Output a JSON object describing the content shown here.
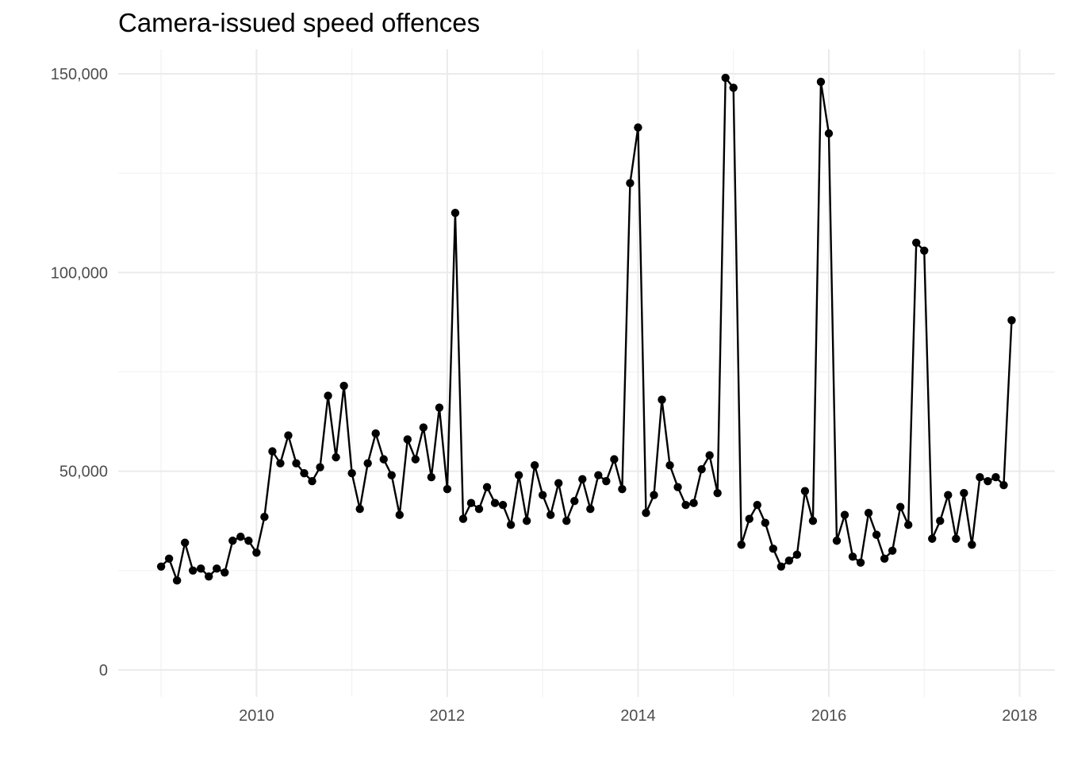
{
  "chart_data": {
    "type": "line",
    "title": "Camera-issued speed offences",
    "xlabel": "",
    "ylabel": "",
    "xlim": [
      2008.55,
      2018.37
    ],
    "ylim": [
      -6800,
      156200
    ],
    "x_ticks": [
      2010,
      2012,
      2014,
      2016,
      2018
    ],
    "x_tick_labels": [
      "2010",
      "2012",
      "2014",
      "2016",
      "2018"
    ],
    "y_ticks": [
      0,
      50000,
      100000,
      150000
    ],
    "y_tick_labels": [
      "0",
      "50,000",
      "100,000",
      "150,000"
    ],
    "grid": true,
    "legend": "none",
    "colors": {
      "line": "#000000",
      "point": "#000000",
      "grid": "#ebebeb",
      "tick_text": "#4d4d4d"
    },
    "x_start": "2009-01",
    "x_step": "month",
    "x_labels": [
      "2009-01",
      "2009-02",
      "2009-03",
      "2009-04",
      "2009-05",
      "2009-06",
      "2009-07",
      "2009-08",
      "2009-09",
      "2009-10",
      "2009-11",
      "2009-12",
      "2010-01",
      "2010-02",
      "2010-03",
      "2010-04",
      "2010-05",
      "2010-06",
      "2010-07",
      "2010-08",
      "2010-09",
      "2010-10",
      "2010-11",
      "2010-12",
      "2011-01",
      "2011-02",
      "2011-03",
      "2011-04",
      "2011-05",
      "2011-06",
      "2011-07",
      "2011-08",
      "2011-09",
      "2011-10",
      "2011-11",
      "2011-12",
      "2012-01",
      "2012-02",
      "2012-03",
      "2012-04",
      "2012-05",
      "2012-06",
      "2012-07",
      "2012-08",
      "2012-09",
      "2012-10",
      "2012-11",
      "2012-12",
      "2013-01",
      "2013-02",
      "2013-03",
      "2013-04",
      "2013-05",
      "2013-06",
      "2013-07",
      "2013-08",
      "2013-09",
      "2013-10",
      "2013-11",
      "2013-12",
      "2014-01",
      "2014-02",
      "2014-03",
      "2014-04",
      "2014-05",
      "2014-06",
      "2014-07",
      "2014-08",
      "2014-09",
      "2014-10",
      "2014-11",
      "2014-12",
      "2015-01",
      "2015-02",
      "2015-03",
      "2015-04",
      "2015-05",
      "2015-06",
      "2015-07",
      "2015-08",
      "2015-09",
      "2015-10",
      "2015-11",
      "2015-12",
      "2016-01",
      "2016-02",
      "2016-03",
      "2016-04",
      "2016-05",
      "2016-06",
      "2016-07",
      "2016-08",
      "2016-09",
      "2016-10",
      "2016-11",
      "2016-12",
      "2017-01",
      "2017-02",
      "2017-03",
      "2017-04",
      "2017-05",
      "2017-06",
      "2017-07",
      "2017-08",
      "2017-09",
      "2017-10",
      "2017-11",
      "2017-12"
    ],
    "series": [
      {
        "values": [
          26000,
          28000,
          22500,
          32000,
          25000,
          25500,
          23500,
          25500,
          24500,
          32500,
          33500,
          32500,
          29500,
          38500,
          55000,
          52000,
          59000,
          52000,
          49500,
          47500,
          51000,
          69000,
          53500,
          71500,
          49500,
          40500,
          52000,
          59500,
          53000,
          49000,
          39000,
          58000,
          53000,
          61000,
          48500,
          66000,
          45500,
          115000,
          38000,
          42000,
          40500,
          46000,
          42000,
          41500,
          36500,
          49000,
          37500,
          51500,
          44000,
          39000,
          47000,
          37500,
          42500,
          48000,
          40500,
          49000,
          47500,
          53000,
          45500,
          122500,
          136500,
          39500,
          44000,
          68000,
          51500,
          46000,
          41500,
          42000,
          50500,
          54000,
          44500,
          149000,
          146500,
          31500,
          38000,
          41500,
          37000,
          30500,
          26000,
          27500,
          29000,
          45000,
          37500,
          148000,
          135000,
          32500,
          39000,
          28500,
          27000,
          39500,
          34000,
          28000,
          30000,
          41000,
          36500,
          107500,
          105500,
          33000,
          37500,
          44000,
          33000,
          44500,
          31500,
          48500,
          47500,
          48500,
          46500,
          88000
        ]
      }
    ]
  }
}
